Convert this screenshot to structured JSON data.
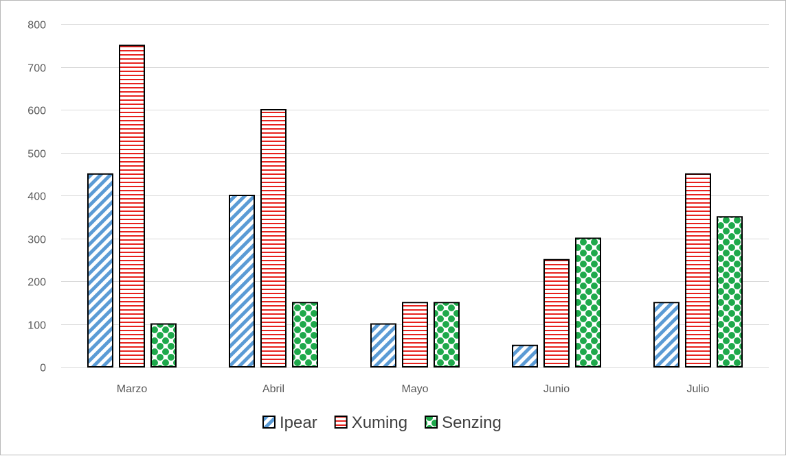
{
  "chart_data": {
    "type": "bar",
    "title": "",
    "xlabel": "",
    "ylabel": "",
    "categories": [
      "Marzo",
      "Abril",
      "Mayo",
      "Junio",
      "Julio"
    ],
    "series": [
      {
        "name": "Ipear",
        "values": [
          450,
          400,
          100,
          50,
          150
        ],
        "color": "#5b9bd5",
        "pattern": "diagonal-stripes"
      },
      {
        "name": "Xuming",
        "values": [
          750,
          600,
          150,
          250,
          450
        ],
        "color": "#e8211d",
        "pattern": "horizontal-stripes"
      },
      {
        "name": "Senzing",
        "values": [
          100,
          150,
          150,
          300,
          350
        ],
        "color": "#1ea94b",
        "pattern": "dots"
      }
    ],
    "ylim": [
      0,
      800
    ],
    "yticks": [
      0,
      100,
      200,
      300,
      400,
      500,
      600,
      700,
      800
    ],
    "grid": true,
    "legend_position": "bottom"
  }
}
